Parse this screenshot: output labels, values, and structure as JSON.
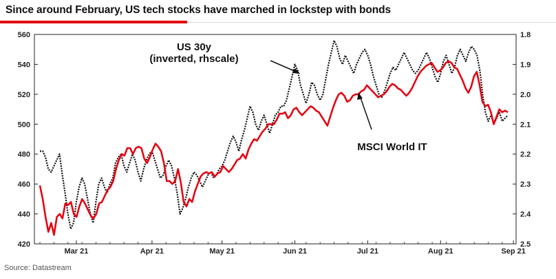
{
  "title": "Since around February, US tech stocks have marched in lockstep with bonds",
  "source": "Source: Datastream",
  "colors": {
    "msci": "#e30613",
    "us30y": "#111111",
    "accent": "#e30613"
  },
  "chart_data": {
    "type": "line",
    "x_labels": [
      "Mar 21",
      "Apr 21",
      "May 21",
      "Jun 21",
      "Jul 21",
      "Aug 21",
      "Sep 21"
    ],
    "x_range": [
      0,
      142
    ],
    "x_label_positions": [
      13,
      40,
      65,
      91,
      117,
      143,
      169
    ],
    "ylim_left": [
      420,
      560
    ],
    "yticks_left": [
      420,
      440,
      460,
      480,
      500,
      520,
      540,
      560
    ],
    "ylim_right_inverted": [
      1.8,
      2.5
    ],
    "yticks_right": [
      "1.8",
      "1.9",
      "2.0",
      "2.1",
      "2.2",
      "2.3",
      "2.4",
      "2.5"
    ],
    "grid": false,
    "annotations": [
      {
        "text": "US 30y",
        "points_to": "US 30y",
        "line2": "(inverted, rhscale)"
      },
      {
        "text": "MSCI World IT",
        "points_to": "MSCI World IT"
      }
    ],
    "series": [
      {
        "name": "MSCI World IT",
        "axis": "left",
        "style": "solid",
        "values": [
          459,
          450,
          438,
          428,
          434,
          426,
          438,
          440,
          437,
          447,
          446,
          448,
          440,
          438,
          445,
          450,
          447,
          443,
          439,
          437,
          440,
          447,
          448,
          452,
          456,
          458,
          462,
          470,
          476,
          480,
          479,
          484,
          484,
          480,
          484,
          485,
          484,
          477,
          474,
          478,
          483,
          487,
          485,
          482,
          474,
          462,
          462,
          460,
          462,
          470,
          461,
          448,
          445,
          450,
          448,
          455,
          460,
          465,
          467,
          468,
          467,
          468,
          465,
          467,
          468,
          472,
          470,
          468,
          470,
          473,
          476,
          477,
          480,
          477,
          483,
          487,
          490,
          489,
          492,
          495,
          497,
          500,
          500,
          500,
          503,
          507,
          507,
          508,
          504,
          506,
          510,
          511,
          508,
          506,
          508,
          510,
          512,
          511,
          509,
          508,
          505,
          502,
          499,
          505,
          511,
          516,
          520,
          521,
          519,
          515,
          516,
          519,
          520,
          520,
          522,
          523,
          526,
          524,
          522,
          520,
          518,
          519,
          520,
          522,
          525,
          527,
          526,
          524,
          523,
          521,
          519,
          521,
          524,
          528,
          532,
          535,
          537,
          539,
          540,
          541,
          538,
          535,
          536,
          538,
          541,
          542,
          541,
          538,
          537,
          533,
          529,
          524,
          521,
          525,
          532,
          535,
          526,
          515,
          512,
          513,
          508,
          500,
          505,
          510,
          508,
          509,
          508
        ],
        "note": "values read approximately from chart; 167 points from early Mar to late Sep 2021"
      },
      {
        "name": "US 30y (inverted, rhscale)",
        "axis": "right",
        "style": "dotted",
        "values": [
          2.19,
          2.19,
          2.21,
          2.25,
          2.26,
          2.24,
          2.22,
          2.2,
          2.27,
          2.33,
          2.4,
          2.45,
          2.43,
          2.36,
          2.31,
          2.28,
          2.3,
          2.35,
          2.4,
          2.43,
          2.36,
          2.3,
          2.28,
          2.31,
          2.33,
          2.3,
          2.28,
          2.23,
          2.21,
          2.2,
          2.24,
          2.26,
          2.23,
          2.2,
          2.22,
          2.26,
          2.29,
          2.25,
          2.22,
          2.2,
          2.19,
          2.22,
          2.25,
          2.28,
          2.27,
          2.24,
          2.22,
          2.24,
          2.28,
          2.33,
          2.4,
          2.38,
          2.35,
          2.31,
          2.28,
          2.26,
          2.27,
          2.29,
          2.31,
          2.29,
          2.27,
          2.26,
          2.28,
          2.27,
          2.25,
          2.24,
          2.22,
          2.19,
          2.16,
          2.14,
          2.16,
          2.19,
          2.15,
          2.12,
          2.08,
          2.04,
          2.06,
          2.1,
          2.12,
          2.09,
          2.07,
          2.1,
          2.13,
          2.1,
          2.07,
          2.06,
          2.04,
          2.04,
          2.02,
          1.98,
          1.94,
          1.9,
          1.92,
          1.97,
          2.0,
          2.03,
          2.0,
          1.96,
          1.97,
          2.0,
          2.02,
          2.0,
          1.95,
          1.9,
          1.86,
          1.82,
          1.84,
          1.88,
          1.9,
          1.87,
          1.89,
          1.91,
          1.93,
          1.9,
          1.88,
          1.86,
          1.85,
          1.87,
          1.9,
          1.94,
          1.97,
          2.0,
          2.01,
          1.99,
          1.96,
          1.93,
          1.91,
          1.92,
          1.9,
          1.88,
          1.86,
          1.88,
          1.9,
          1.92,
          1.93,
          1.92,
          1.9,
          1.88,
          1.86,
          1.88,
          1.91,
          1.94,
          1.96,
          1.93,
          1.89,
          1.87,
          1.9,
          1.93,
          1.91,
          1.87,
          1.85,
          1.87,
          1.89,
          1.86,
          1.84,
          1.85,
          1.87,
          1.92,
          2.0,
          2.06,
          2.09,
          2.07,
          2.1,
          2.08,
          2.06,
          2.09,
          2.08,
          2.07
        ],
        "note": "values read approximately from chart; right axis inverted (1.8 at top, 2.5 at bottom)"
      }
    ]
  }
}
